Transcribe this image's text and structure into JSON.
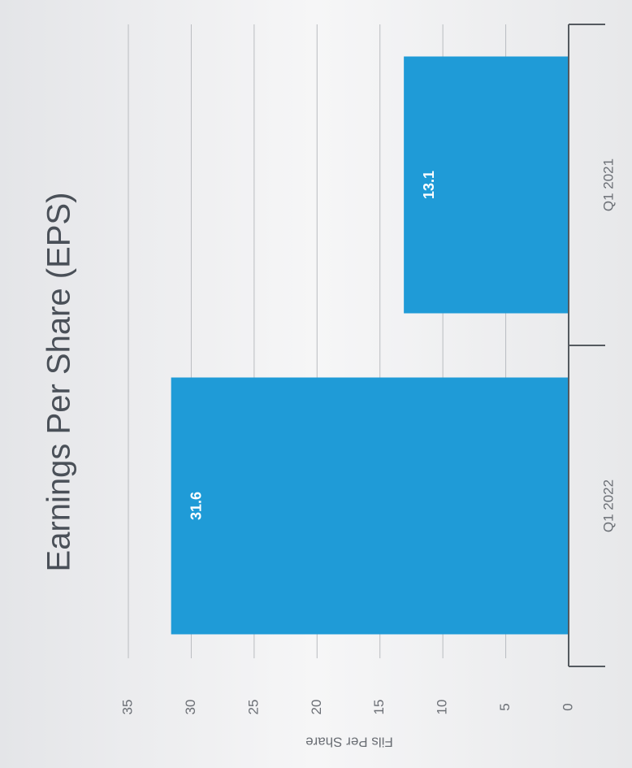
{
  "chart_data": {
    "type": "bar",
    "title": "Earnings Per Share (EPS)",
    "y_label": "Fils Per Share",
    "categories": [
      "Q1 2022",
      "Q1 2021"
    ],
    "values": [
      31.6,
      13.1
    ],
    "color": "#1f9bd7",
    "ylim": [
      0,
      35
    ],
    "yticks": [
      0,
      5,
      10,
      15,
      20,
      25,
      30,
      35
    ],
    "grid": true
  }
}
